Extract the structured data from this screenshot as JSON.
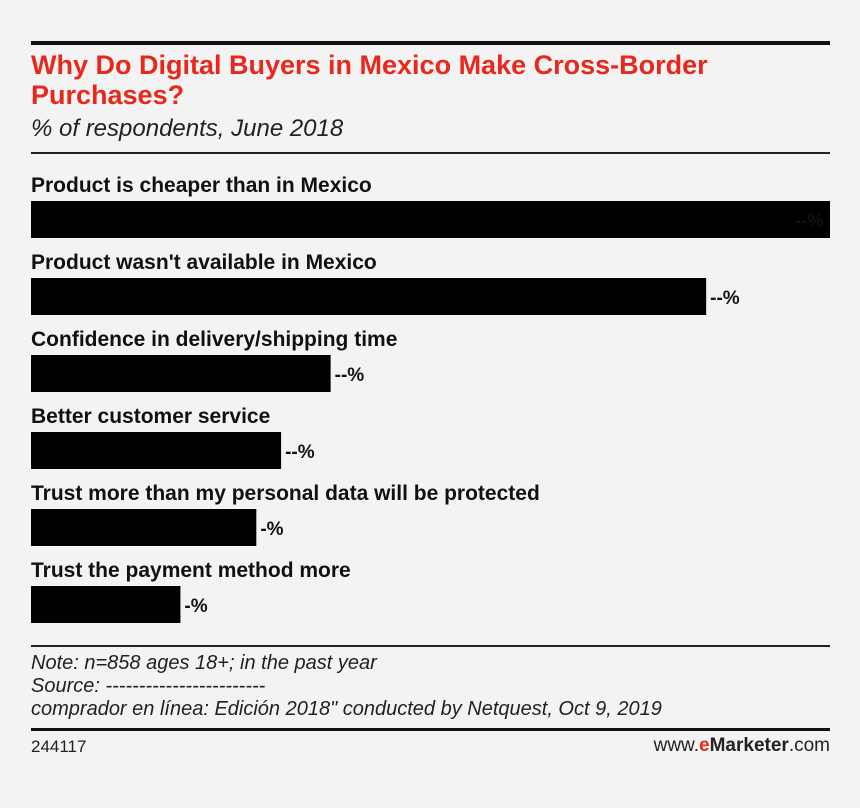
{
  "chart_data": {
    "type": "bar",
    "orientation": "horizontal",
    "title": "Why Do Digital Buyers in Mexico Make Cross-Border Purchases?",
    "subtitle": "% of respondents, June 2018",
    "categories": [
      "Product is cheaper than in Mexico",
      "Product wasn't available in Mexico",
      "Confidence in delivery/shipping time",
      "Better customer service",
      "Trust more than my personal data will be protected",
      "Trust the payment method more"
    ],
    "values": [
      100,
      84.5,
      37.5,
      31.3,
      28.2,
      18.7
    ],
    "value_labels": [
      "--%",
      "--%",
      "--%",
      "--%",
      "-%",
      "-%"
    ],
    "xlim": [
      0,
      100
    ],
    "grid": false,
    "bar_color": "#000000"
  },
  "notes": {
    "note": "Note: n=858 ages 18+; in the past year",
    "source": "Source: ------------------------",
    "source_cont": "comprador en línea: Edición 2018\" conducted by Netquest, Oct 9, 2019"
  },
  "footer": {
    "chart_id": "244117",
    "brand_prefix": "www.",
    "brand_e": "e",
    "brand_name": "Marketer",
    "brand_suffix": ".com"
  },
  "colors": {
    "title": "#e8281c",
    "background": "#f3f3f3"
  }
}
